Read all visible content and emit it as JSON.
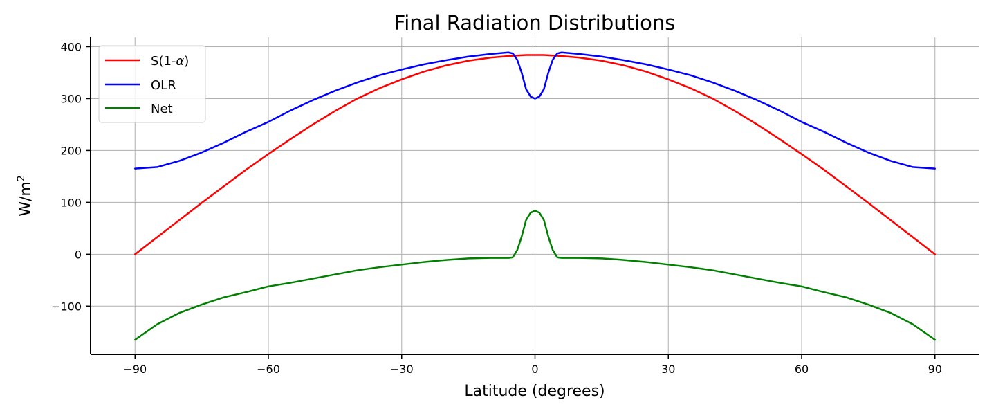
{
  "chart_data": {
    "type": "line",
    "title": "Final Radiation Distributions",
    "xlabel": "Latitude (degrees)",
    "ylabel": "W/m",
    "ylabel_superscript": "2",
    "xlim": [
      -100,
      100
    ],
    "ylim": [
      -193,
      418
    ],
    "xticks": [
      -90,
      -60,
      -30,
      0,
      30,
      60,
      90
    ],
    "xtick_labels": [
      "−90",
      "−60",
      "−30",
      "0",
      "30",
      "60",
      "90"
    ],
    "yticks": [
      -100,
      0,
      100,
      200,
      300,
      400
    ],
    "ytick_labels": [
      "−100",
      "0",
      "100",
      "200",
      "300",
      "400"
    ],
    "grid": true,
    "legend_position": "upper-left",
    "x": [
      -90,
      -85,
      -80,
      -75,
      -70,
      -65,
      -60,
      -55,
      -50,
      -45,
      -40,
      -35,
      -30,
      -25,
      -20,
      -15,
      -10,
      -6,
      -5,
      -4,
      -3,
      -2,
      -1,
      0,
      1,
      2,
      3,
      4,
      5,
      6,
      10,
      15,
      20,
      25,
      30,
      35,
      40,
      45,
      50,
      55,
      60,
      65,
      70,
      75,
      80,
      85,
      90
    ],
    "series": [
      {
        "name": "S(1-α)",
        "legend_prefix": "S(1-",
        "legend_symbol": "α",
        "legend_suffix": ")",
        "color": "#ff0000",
        "values": [
          0,
          33,
          66,
          99,
          131,
          163,
          193,
          222,
          250,
          276,
          300,
          320,
          337,
          352,
          364,
          373,
          379,
          382,
          382.5,
          383,
          383.5,
          384,
          384,
          384,
          384,
          384,
          383.5,
          383,
          382.5,
          382,
          379,
          373,
          364,
          352,
          337,
          320,
          300,
          276,
          250,
          222,
          193,
          163,
          131,
          99,
          66,
          33,
          0
        ]
      },
      {
        "name": "OLR",
        "color": "#0000ff",
        "values": [
          165,
          168,
          180,
          196,
          215,
          236,
          255,
          277,
          297,
          315,
          331,
          345,
          356,
          366,
          374,
          381,
          386,
          389,
          387,
          375,
          350,
          318,
          304,
          300,
          304,
          318,
          350,
          375,
          387,
          389,
          386,
          381,
          374,
          366,
          356,
          345,
          331,
          315,
          297,
          277,
          255,
          236,
          215,
          196,
          180,
          168,
          165
        ]
      },
      {
        "name": "Net",
        "color": "#008000",
        "values": [
          -165,
          -135,
          -113,
          -97,
          -83,
          -73,
          -62,
          -55,
          -47,
          -39,
          -31,
          -25,
          -20,
          -15,
          -11,
          -8,
          -7,
          -7,
          -6,
          8,
          34,
          66,
          80,
          84,
          80,
          66,
          34,
          8,
          -6,
          -7,
          -7,
          -8,
          -11,
          -15,
          -20,
          -25,
          -31,
          -39,
          -47,
          -55,
          -62,
          -73,
          -83,
          -97,
          -113,
          -135,
          -165
        ]
      }
    ]
  }
}
